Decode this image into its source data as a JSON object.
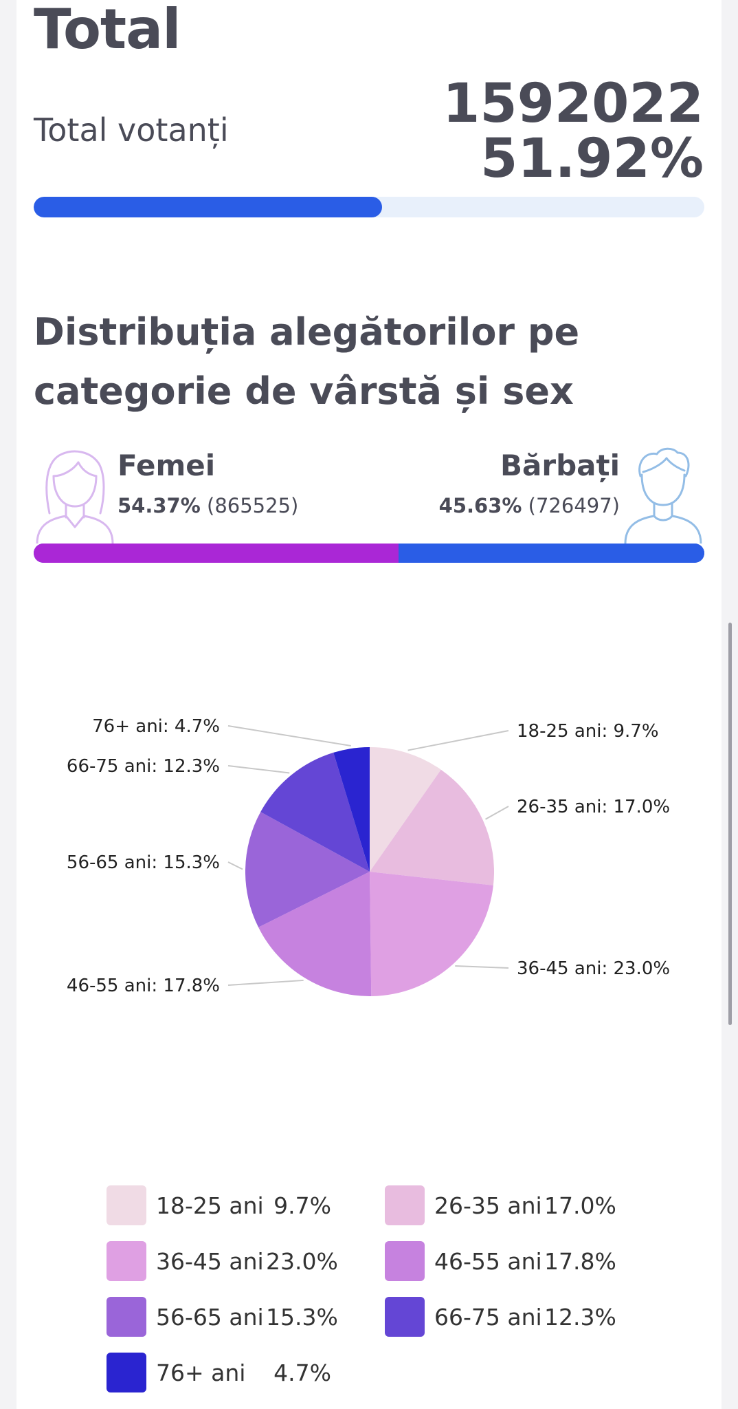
{
  "header": {
    "title": "Total"
  },
  "votes": {
    "label": "Total votanți",
    "count": "1592022",
    "percent": "51.92%",
    "progress_fraction": 0.5192,
    "bar_color": "#2a5de6",
    "track_color": "#e8f0fb"
  },
  "distribution": {
    "title": "Distribuția alegătorilor pe categorie de vârstă și sex",
    "female": {
      "label": "Femei",
      "percent": "54.37%",
      "count": "(865525)",
      "share": 0.5437,
      "color": "#aa27d6",
      "icon": "woman-avatar-icon"
    },
    "male": {
      "label": "Bărbați",
      "percent": "45.63%",
      "count": "(726497)",
      "share": 0.4563,
      "color": "#2a5de6",
      "icon": "man-avatar-icon"
    }
  },
  "chart_data": {
    "type": "pie",
    "title": "",
    "categories": [
      "18-25 ani",
      "26-35 ani",
      "36-45 ani",
      "46-55 ani",
      "56-65 ani",
      "66-75 ani",
      "76+ ani"
    ],
    "values": [
      9.7,
      17.0,
      23.0,
      17.8,
      15.3,
      12.3,
      4.7
    ],
    "value_labels": [
      "9.7%",
      "17.0%",
      "23.0%",
      "17.8%",
      "15.3%",
      "12.3%",
      "4.7%"
    ],
    "slice_labels": [
      "18-25 ani: 9.7%",
      "26-35 ani: 17.0%",
      "36-45 ani: 23.0%",
      "46-55 ani: 17.8%",
      "56-65 ani: 15.3%",
      "66-75 ani: 12.3%",
      "76+ ani: 4.7%"
    ],
    "colors": [
      "#f0dbe5",
      "#e8bcdf",
      "#dfa0e3",
      "#c682df",
      "#9a65d9",
      "#6446d5",
      "#2a24d0"
    ],
    "legend_position": "bottom"
  }
}
